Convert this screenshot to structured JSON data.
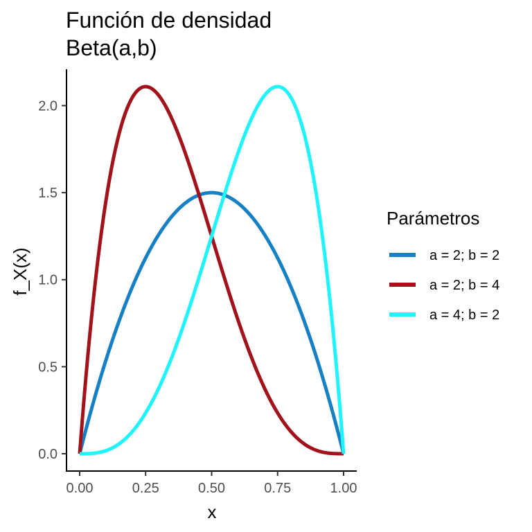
{
  "chart_data": {
    "type": "line",
    "title": "Función de densidad",
    "subtitle": "Beta(a,b)",
    "xlabel": "x",
    "ylabel": "f_X(x)",
    "xlim": [
      0,
      1
    ],
    "ylim": [
      0,
      2.109375
    ],
    "x_ticks": [
      0,
      0.25,
      0.5,
      0.75,
      1
    ],
    "x_tick_labels": [
      "0.00",
      "0.25",
      "0.50",
      "0.75",
      "1.00"
    ],
    "y_ticks": [
      0,
      0.5,
      1,
      1.5,
      2
    ],
    "y_tick_labels": [
      "0.0",
      "0.5",
      "1.0",
      "1.5",
      "2.0"
    ],
    "grid": false,
    "legend": {
      "title": "Parámetros",
      "position": "right"
    },
    "series": [
      {
        "name": "a = 2; b = 2",
        "a": 2,
        "b": 2,
        "color": "#1580c3"
      },
      {
        "name": "a = 2; b = 4",
        "a": 2,
        "b": 4,
        "color": "#a1121b"
      },
      {
        "name": "a = 4; b = 2",
        "a": 4,
        "b": 2,
        "color": "#1ff3fb"
      }
    ]
  }
}
